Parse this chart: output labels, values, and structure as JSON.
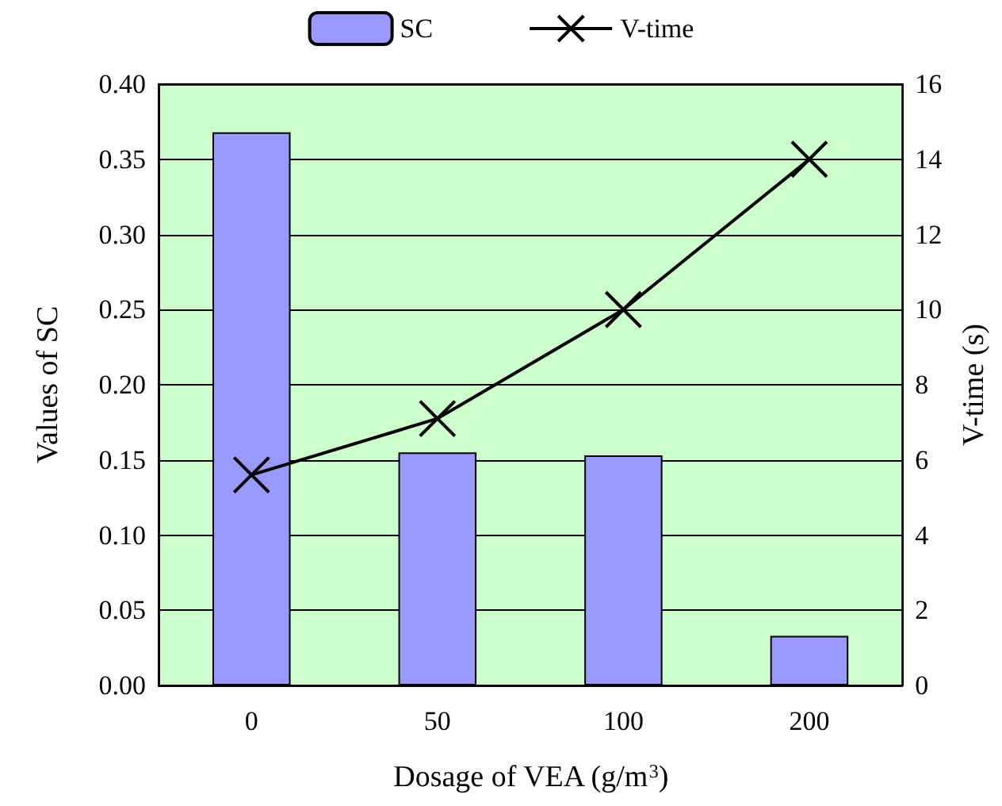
{
  "chart_data": {
    "type": "bar",
    "xlabel": "Dosage of VEA (g/m$^{3}$)",
    "ylabel": "Values of SC",
    "y2label": "V-time (s)",
    "categories": [
      "0",
      "50",
      "100",
      "200"
    ],
    "series": [
      {
        "name": "SC",
        "color": "#9999ff",
        "values": [
          0.368,
          0.155,
          0.153,
          0.033
        ]
      },
      {
        "name": "V-time",
        "type": "line",
        "axis": "y2",
        "color": "#000000",
        "marker": "cross",
        "values": [
          5.6,
          7.1,
          10.0,
          14.0
        ]
      }
    ],
    "ylim": [
      0,
      0.4
    ],
    "yticks": [
      {
        "value": 0,
        "label": "0.00"
      },
      {
        "value": 0.05,
        "label": "0.05"
      },
      {
        "value": 0.1,
        "label": "0.10"
      },
      {
        "value": 0.15,
        "label": "0.15"
      },
      {
        "value": 0.2,
        "label": "0.20"
      },
      {
        "value": 0.25,
        "label": "0.25"
      },
      {
        "value": 0.3,
        "label": "0.30"
      },
      {
        "value": 0.35,
        "label": "0.35"
      },
      {
        "value": 0.4,
        "label": "0.40"
      }
    ],
    "y2lim": [
      0,
      16
    ],
    "y2ticks": [
      0,
      2,
      4,
      6,
      8,
      10,
      12,
      14,
      16
    ],
    "grid": "y",
    "legend": "top"
  }
}
